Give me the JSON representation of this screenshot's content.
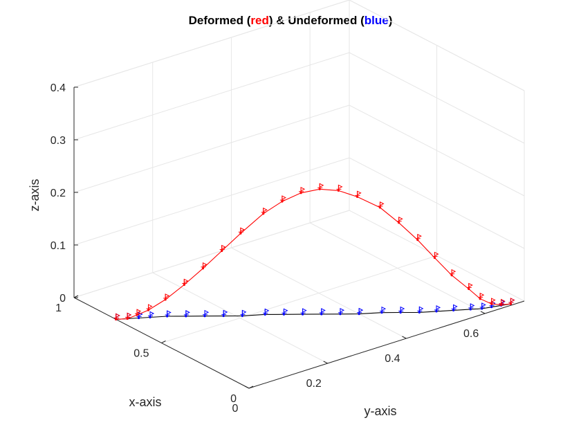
{
  "chart_data": {
    "type": "line",
    "title": {
      "parts": [
        {
          "text": "Deformed (",
          "color": "#000000"
        },
        {
          "text": "red",
          "color": "#ff0000"
        },
        {
          "text": ") & Undeformed (",
          "color": "#000000"
        },
        {
          "text": "blue",
          "color": "#0000ff"
        },
        {
          "text": ")",
          "color": "#000000"
        }
      ]
    },
    "xlabel": "x-axis",
    "ylabel": "y-axis",
    "zlabel": "z-axis",
    "xlim": [
      0,
      1
    ],
    "ylim": [
      0,
      0.7
    ],
    "zlim": [
      0,
      0.4
    ],
    "x_ticks": [
      {
        "value": 0,
        "label": "0"
      },
      {
        "value": 0.5,
        "label": "0.5"
      },
      {
        "value": 1,
        "label": "1"
      }
    ],
    "y_ticks": [
      {
        "value": 0,
        "label": "0"
      },
      {
        "value": 0.2,
        "label": "0.2"
      },
      {
        "value": 0.4,
        "label": "0.4"
      },
      {
        "value": 0.6,
        "label": "0.6"
      }
    ],
    "z_ticks": [
      {
        "value": 0,
        "label": "0"
      },
      {
        "value": 0.1,
        "label": "0.1"
      },
      {
        "value": 0.2,
        "label": "0.2"
      },
      {
        "value": 0.3,
        "label": "0.3"
      },
      {
        "value": 0.4,
        "label": "0.4"
      }
    ],
    "grid": true,
    "box": "open-3d",
    "view": "3d",
    "colors": {
      "deformed": "#ff0000",
      "undeformed": "#0000ff",
      "undeformed_line": "#000000",
      "grid": "#e6e6e6",
      "axis": "#262626"
    },
    "series": [
      {
        "color": "#ff0000",
        "marker": "flag-triangle",
        "points": [
          [
            0.76,
            0.0,
            0.0
          ],
          [
            0.74,
            0.02,
            0.0
          ],
          [
            0.73,
            0.04,
            0.004
          ],
          [
            0.71,
            0.06,
            0.012
          ],
          [
            0.68,
            0.09,
            0.03
          ],
          [
            0.64,
            0.12,
            0.058
          ],
          [
            0.6,
            0.15,
            0.089
          ],
          [
            0.56,
            0.18,
            0.122
          ],
          [
            0.52,
            0.21,
            0.155
          ],
          [
            0.48,
            0.25,
            0.19
          ],
          [
            0.44,
            0.28,
            0.213
          ],
          [
            0.4,
            0.31,
            0.229
          ],
          [
            0.36,
            0.34,
            0.236
          ],
          [
            0.32,
            0.37,
            0.233
          ],
          [
            0.28,
            0.4,
            0.221
          ],
          [
            0.24,
            0.44,
            0.198
          ],
          [
            0.2,
            0.47,
            0.169
          ],
          [
            0.16,
            0.5,
            0.136
          ],
          [
            0.13,
            0.53,
            0.1
          ],
          [
            0.1,
            0.56,
            0.065
          ],
          [
            0.07,
            0.59,
            0.037
          ],
          [
            0.05,
            0.61,
            0.017
          ],
          [
            0.03,
            0.63,
            0.006
          ],
          [
            0.02,
            0.65,
            0.001
          ],
          [
            0.01,
            0.67,
            0.0
          ]
        ]
      },
      {
        "color": "#0000ff",
        "marker": "flag-triangle",
        "points": [
          [
            0.76,
            0.0,
            0
          ],
          [
            0.74,
            0.02,
            0
          ],
          [
            0.72,
            0.04,
            0
          ],
          [
            0.7,
            0.06,
            0
          ],
          [
            0.67,
            0.09,
            0
          ],
          [
            0.63,
            0.12,
            0
          ],
          [
            0.59,
            0.15,
            0
          ],
          [
            0.55,
            0.18,
            0
          ],
          [
            0.51,
            0.21,
            0
          ],
          [
            0.47,
            0.25,
            0
          ],
          [
            0.43,
            0.28,
            0
          ],
          [
            0.39,
            0.31,
            0
          ],
          [
            0.35,
            0.34,
            0
          ],
          [
            0.31,
            0.37,
            0
          ],
          [
            0.27,
            0.4,
            0
          ],
          [
            0.23,
            0.44,
            0
          ],
          [
            0.19,
            0.47,
            0
          ],
          [
            0.15,
            0.5,
            0
          ],
          [
            0.12,
            0.53,
            0
          ],
          [
            0.09,
            0.56,
            0
          ],
          [
            0.06,
            0.59,
            0
          ],
          [
            0.04,
            0.61,
            0
          ],
          [
            0.03,
            0.63,
            0
          ],
          [
            0.02,
            0.65,
            0
          ],
          [
            0.01,
            0.67,
            0
          ]
        ]
      }
    ]
  }
}
